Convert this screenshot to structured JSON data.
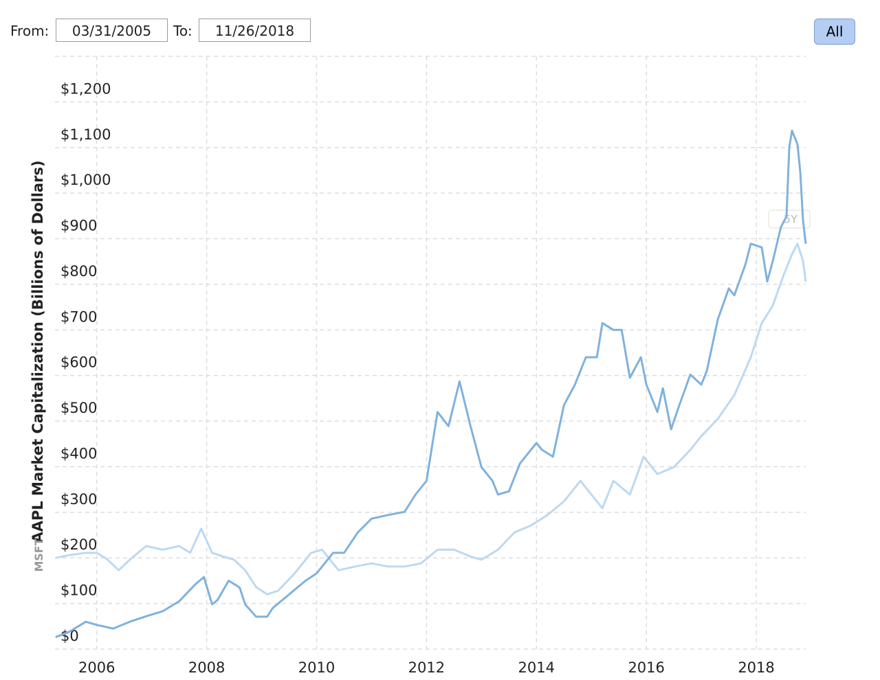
{
  "controls": {
    "from_label": "From:",
    "from_value": "03/31/2005",
    "to_label": "To:",
    "to_value": "11/26/2018",
    "range_button": "All",
    "ghost_button": "5Y"
  },
  "chart_data": {
    "type": "line",
    "y_label": "AAPL Market Capitalization (Billions of Dollars)",
    "y_label_secondary": "MSFT",
    "xlim": [
      2005.24,
      2018.9
    ],
    "xticks": [
      2006,
      2008,
      2010,
      2012,
      2014,
      2016,
      2018
    ],
    "ylim": [
      0,
      1300
    ],
    "yticks": [
      {
        "value": 0,
        "label": "$0"
      },
      {
        "value": 100,
        "label": "$100"
      },
      {
        "value": 200,
        "label": "$200"
      },
      {
        "value": 300,
        "label": "$300"
      },
      {
        "value": 400,
        "label": "$400"
      },
      {
        "value": 500,
        "label": "$500"
      },
      {
        "value": 600,
        "label": "$600"
      },
      {
        "value": 700,
        "label": "$700"
      },
      {
        "value": 800,
        "label": "$800"
      },
      {
        "value": 900,
        "label": "$900"
      },
      {
        "value": 1000,
        "label": "$1,000"
      },
      {
        "value": 1100,
        "label": "$1,100"
      },
      {
        "value": 1200,
        "label": "$1,200"
      }
    ],
    "grid": true,
    "series": [
      {
        "color": "#bcd9f1",
        "x": [
          2005.25,
          2005.5,
          2005.8,
          2006.0,
          2006.2,
          2006.4,
          2006.6,
          2006.9,
          2007.2,
          2007.5,
          2007.7,
          2007.9,
          2008.1,
          2008.3,
          2008.5,
          2008.7,
          2008.9,
          2009.1,
          2009.3,
          2009.6,
          2009.9,
          2010.1,
          2010.4,
          2010.7,
          2011.0,
          2011.3,
          2011.6,
          2011.9,
          2012.2,
          2012.5,
          2012.8,
          2013.0,
          2013.3,
          2013.6,
          2013.9,
          2014.2,
          2014.5,
          2014.8,
          2015.0,
          2015.2,
          2015.4,
          2015.7,
          2015.95,
          2016.2,
          2016.5,
          2016.8,
          2017.0,
          2017.3,
          2017.6,
          2017.9,
          2018.1,
          2018.3,
          2018.5,
          2018.65,
          2018.75,
          2018.85,
          2018.9
        ],
        "values": [
          200,
          206,
          211,
          211,
          196,
          173,
          196,
          226,
          218,
          226,
          211,
          264,
          211,
          203,
          196,
          173,
          136,
          120,
          128,
          166,
          211,
          218,
          173,
          181,
          188,
          181,
          181,
          188,
          218,
          218,
          203,
          196,
          218,
          256,
          271,
          294,
          324,
          369,
          339,
          309,
          369,
          339,
          422,
          384,
          399,
          437,
          467,
          505,
          557,
          640,
          715,
          753,
          821,
          866,
          889,
          851,
          806
        ]
      },
      {
        "color": "#7fb1de",
        "x": [
          2005.25,
          2005.5,
          2005.8,
          2006.0,
          2006.3,
          2006.6,
          2006.9,
          2007.2,
          2007.5,
          2007.8,
          2007.95,
          2008.1,
          2008.2,
          2008.4,
          2008.6,
          2008.7,
          2008.9,
          2009.1,
          2009.2,
          2009.5,
          2009.8,
          2010.0,
          2010.3,
          2010.5,
          2010.75,
          2011.0,
          2011.3,
          2011.6,
          2011.8,
          2012.0,
          2012.2,
          2012.4,
          2012.6,
          2012.8,
          2013.0,
          2013.2,
          2013.3,
          2013.5,
          2013.7,
          2014.0,
          2014.1,
          2014.3,
          2014.5,
          2014.7,
          2014.9,
          2015.1,
          2015.2,
          2015.4,
          2015.55,
          2015.7,
          2015.9,
          2016.0,
          2016.2,
          2016.3,
          2016.45,
          2016.6,
          2016.8,
          2017.0,
          2017.1,
          2017.3,
          2017.5,
          2017.6,
          2017.8,
          2017.9,
          2018.1,
          2018.2,
          2018.3,
          2018.45,
          2018.55,
          2018.6,
          2018.65,
          2018.75,
          2018.8,
          2018.85,
          2018.9
        ],
        "values": [
          26,
          38,
          60,
          53,
          45,
          60,
          72,
          83,
          105,
          143,
          158,
          98,
          108,
          150,
          135,
          98,
          71,
          71,
          90,
          120,
          150,
          166,
          211,
          211,
          256,
          286,
          294,
          301,
          339,
          369,
          520,
          489,
          587,
          489,
          399,
          369,
          339,
          346,
          407,
          452,
          437,
          422,
          535,
          580,
          640,
          640,
          715,
          700,
          700,
          595,
          640,
          580,
          520,
          572,
          482,
          535,
          602,
          580,
          610,
          723,
          791,
          776,
          843,
          889,
          881,
          806,
          851,
          926,
          949,
          1099,
          1137,
          1107,
          1047,
          941,
          889
        ]
      }
    ]
  }
}
